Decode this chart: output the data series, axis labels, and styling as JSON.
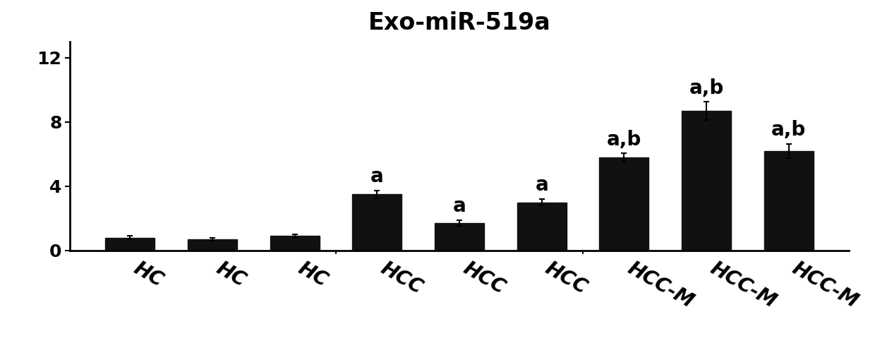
{
  "title": "Exo-miR-519a",
  "categories": [
    "HC",
    "HC",
    "HC",
    "HCC",
    "HCC",
    "HCC",
    "HCC-M",
    "HCC-M",
    "HCC-M"
  ],
  "values": [
    0.8,
    0.7,
    0.9,
    3.5,
    1.7,
    3.0,
    5.8,
    8.7,
    6.2
  ],
  "errors": [
    0.12,
    0.1,
    0.13,
    0.25,
    0.18,
    0.2,
    0.25,
    0.55,
    0.45
  ],
  "labels": [
    "",
    "",
    "",
    "a",
    "a",
    "a",
    "a,b",
    "a,b",
    "a,b"
  ],
  "bar_color": "#111111",
  "ylim": [
    0,
    13
  ],
  "yticks": [
    0,
    4,
    8,
    12
  ],
  "title_fontsize": 24,
  "tick_fontsize": 18,
  "annot_fontsize": 20,
  "xtick_fontsize": 20,
  "background_color": "#ffffff",
  "bar_width": 0.6,
  "group_separators": [
    2.5,
    5.5
  ]
}
